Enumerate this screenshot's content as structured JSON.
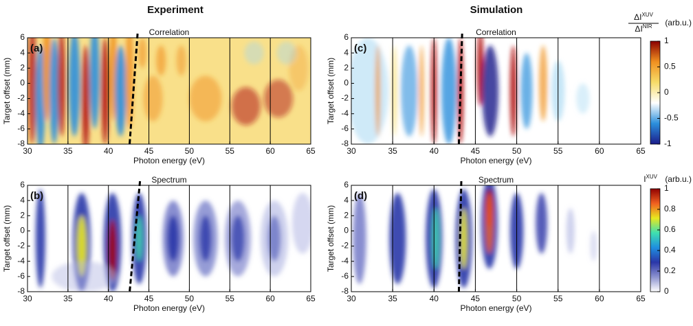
{
  "column_titles": [
    "Experiment",
    "Simulation"
  ],
  "chart_data": [
    {
      "type": "heatmap",
      "panel_label": "(a)",
      "title": "Correlation",
      "xlabel": "Photon energy (eV)",
      "ylabel": "Target offset (mm)",
      "xlim": [
        30,
        65
      ],
      "ylim": [
        -8,
        6
      ],
      "xticks": [
        30,
        35,
        40,
        45,
        50,
        55,
        60,
        65
      ],
      "yticks": [
        -8,
        -6,
        -4,
        -2,
        0,
        2,
        4,
        6
      ],
      "grid": true
    },
    {
      "type": "heatmap",
      "panel_label": "(b)",
      "title": "Spectrum",
      "xlabel": "Photon energy (eV)",
      "ylabel": "Target offset (mm)",
      "xlim": [
        30,
        65
      ],
      "ylim": [
        -8,
        6
      ],
      "xticks": [
        30,
        35,
        40,
        45,
        50,
        55,
        60,
        65
      ],
      "yticks": [
        -8,
        -6,
        -4,
        -2,
        0,
        2,
        4,
        6
      ],
      "grid": true
    },
    {
      "type": "heatmap",
      "panel_label": "(c)",
      "title": "Correlation",
      "xlabel": "Photon energy (eV)",
      "ylabel": "Target offset (mm)",
      "xlim": [
        30,
        65
      ],
      "ylim": [
        -8,
        6
      ],
      "xticks": [
        30,
        35,
        40,
        45,
        50,
        55,
        60,
        65
      ],
      "yticks": [
        -8,
        -6,
        -4,
        -2,
        0,
        2,
        4,
        6
      ],
      "grid": true
    },
    {
      "type": "heatmap",
      "panel_label": "(d)",
      "title": "Spectrum",
      "xlabel": "Photon energy (eV)",
      "ylabel": "Target offset (mm)",
      "xlim": [
        30,
        65
      ],
      "ylim": [
        -8,
        6
      ],
      "xticks": [
        30,
        35,
        40,
        45,
        50,
        55,
        60,
        65
      ],
      "yticks": [
        -8,
        -6,
        -4,
        -2,
        0,
        2,
        4,
        6
      ],
      "grid": true
    }
  ],
  "colorbars": [
    {
      "label_numerator": "ΔI",
      "label_numerator_sup": "XUV",
      "label_denominator": "ΔI",
      "label_denominator_sup": "NIR",
      "unit": "(arb.u.)",
      "lim": [
        -1,
        1
      ],
      "ticks": [
        -1,
        -0.5,
        0,
        0.5,
        1
      ],
      "colors": [
        "#1c1c8a",
        "#2b8fdc",
        "#ffffff",
        "#f7dc68",
        "#f09020",
        "#8b0000"
      ]
    },
    {
      "label": "I",
      "label_sup": "XUV",
      "unit": "(arb.u.)",
      "lim": [
        0,
        1
      ],
      "ticks": [
        0,
        0.2,
        0.4,
        0.6,
        0.8,
        1
      ],
      "colors": [
        "#ffffff",
        "#8c92cf",
        "#2a36a8",
        "#1f8fe0",
        "#3fe0b0",
        "#e8e820",
        "#f06020",
        "#8f0000"
      ]
    }
  ]
}
